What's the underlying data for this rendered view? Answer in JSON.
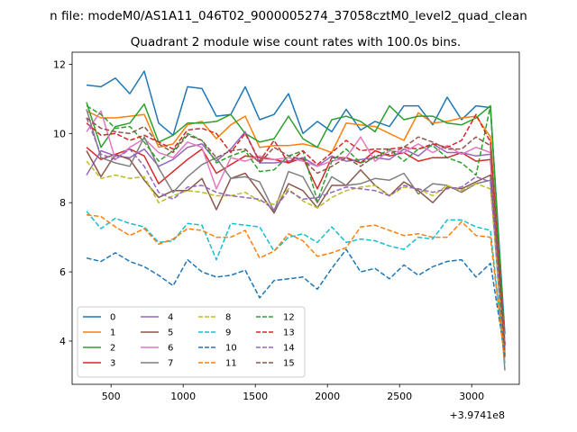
{
  "figure": {
    "suptitle": "n file: modeM0/AS1A11_046T02_9000005274_37058cztM0_level2_quad_clean"
  },
  "chart_data": {
    "type": "line",
    "title": "Quadrant 2 module wise count rates with 100.0s bins.",
    "xlabel": "",
    "ylabel": "",
    "x_offset_label": "+3.9741e8",
    "xlim": [
      230,
      3330
    ],
    "ylim": [
      2.75,
      12.35
    ],
    "xticks": [
      500,
      1000,
      1500,
      2000,
      2500,
      3000
    ],
    "yticks": [
      4,
      6,
      8,
      10,
      12
    ],
    "grid": false,
    "legend_position": "lower-left",
    "legend_columns": 4,
    "x": [
      330,
      430,
      530,
      630,
      730,
      830,
      930,
      1030,
      1130,
      1230,
      1330,
      1430,
      1530,
      1630,
      1730,
      1830,
      1930,
      2030,
      2130,
      2230,
      2330,
      2430,
      2530,
      2630,
      2730,
      2830,
      2930,
      3030,
      3130,
      3230
    ],
    "series": [
      {
        "name": "0",
        "color": "#1f77b4",
        "dash": "solid",
        "values": [
          11.4,
          11.35,
          11.6,
          11.15,
          11.8,
          10.3,
          9.95,
          11.35,
          11.3,
          10.5,
          10.55,
          11.35,
          10.4,
          10.55,
          11.15,
          10.0,
          10.35,
          10.05,
          10.7,
          10.1,
          10.35,
          10.2,
          10.8,
          10.8,
          10.25,
          11.05,
          10.4,
          10.8,
          10.75,
          4.2
        ]
      },
      {
        "name": "1",
        "color": "#ff7f0e",
        "dash": "solid",
        "values": [
          10.65,
          10.45,
          10.45,
          10.5,
          10.55,
          9.6,
          9.7,
          10.25,
          10.35,
          9.85,
          10.25,
          10.5,
          9.6,
          9.65,
          9.65,
          9.7,
          9.6,
          9.45,
          10.3,
          10.25,
          10.2,
          10.0,
          9.8,
          10.6,
          10.3,
          10.35,
          10.45,
          10.5,
          9.9,
          3.9
        ]
      },
      {
        "name": "2",
        "color": "#2ca02c",
        "dash": "solid",
        "values": [
          10.9,
          9.6,
          10.2,
          10.3,
          10.85,
          9.75,
          9.95,
          10.3,
          10.3,
          10.35,
          10.55,
          10.0,
          9.75,
          9.85,
          10.5,
          9.85,
          9.6,
          10.4,
          10.5,
          10.35,
          10.05,
          10.8,
          10.4,
          10.5,
          10.5,
          10.3,
          10.25,
          10.45,
          10.8,
          3.9
        ]
      },
      {
        "name": "3",
        "color": "#d62728",
        "dash": "solid",
        "values": [
          9.6,
          9.25,
          9.4,
          9.55,
          9.35,
          8.55,
          8.9,
          9.25,
          9.55,
          8.85,
          9.1,
          9.35,
          9.3,
          9.25,
          9.15,
          9.3,
          8.4,
          9.3,
          9.3,
          9.15,
          9.5,
          9.35,
          9.45,
          9.2,
          9.3,
          9.3,
          9.45,
          9.2,
          9.25,
          3.7
        ]
      },
      {
        "name": "4",
        "color": "#9467bd",
        "dash": "solid",
        "values": [
          8.8,
          9.5,
          9.35,
          9.3,
          9.55,
          9.05,
          9.25,
          9.6,
          9.7,
          9.2,
          9.55,
          10.05,
          9.15,
          9.15,
          9.2,
          9.3,
          9.05,
          9.35,
          9.2,
          9.25,
          9.3,
          9.25,
          9.55,
          9.35,
          9.7,
          9.45,
          9.45,
          9.35,
          9.4,
          3.9
        ]
      },
      {
        "name": "5",
        "color": "#8c564b",
        "dash": "solid",
        "values": [
          9.5,
          8.75,
          9.4,
          9.25,
          8.65,
          8.15,
          8.35,
          8.35,
          8.7,
          7.8,
          8.7,
          8.85,
          8.3,
          7.7,
          8.55,
          8.35,
          7.85,
          8.5,
          8.5,
          8.95,
          8.5,
          8.2,
          8.6,
          8.35,
          8.0,
          8.45,
          8.4,
          8.6,
          8.8,
          3.55
        ]
      },
      {
        "name": "6",
        "color": "#e377c2",
        "dash": "solid",
        "values": [
          10.05,
          10.65,
          9.25,
          9.6,
          9.85,
          9.45,
          9.3,
          9.75,
          9.6,
          8.4,
          9.3,
          9.2,
          9.35,
          9.25,
          9.3,
          9.2,
          9.05,
          9.2,
          9.3,
          9.9,
          9.2,
          9.5,
          9.45,
          9.7,
          9.45,
          9.65,
          9.4,
          9.6,
          9.45,
          3.95
        ]
      },
      {
        "name": "7",
        "color": "#7f7f7f",
        "dash": "solid",
        "values": [
          10.7,
          9.3,
          9.15,
          9.05,
          9.9,
          9.0,
          8.3,
          8.75,
          9.1,
          9.3,
          8.7,
          8.75,
          8.6,
          7.75,
          8.9,
          8.75,
          8.0,
          8.75,
          8.5,
          8.55,
          8.7,
          8.65,
          8.85,
          8.25,
          8.55,
          8.5,
          8.3,
          8.55,
          8.65,
          3.15
        ]
      },
      {
        "name": "8",
        "color": "#bcbd22",
        "dash": "dashed",
        "values": [
          9.2,
          8.7,
          8.8,
          8.7,
          8.75,
          8.0,
          8.2,
          8.35,
          8.3,
          8.2,
          8.2,
          8.3,
          8.05,
          7.95,
          8.4,
          8.05,
          7.85,
          8.15,
          8.35,
          8.45,
          8.5,
          8.2,
          8.45,
          8.4,
          8.2,
          8.5,
          8.35,
          8.55,
          8.4,
          3.65
        ]
      },
      {
        "name": "9",
        "color": "#17becf",
        "dash": "dashed",
        "values": [
          7.75,
          7.25,
          7.55,
          7.4,
          7.3,
          6.85,
          6.9,
          7.4,
          7.35,
          6.35,
          7.4,
          7.35,
          7.3,
          6.6,
          7.0,
          7.1,
          6.85,
          7.3,
          6.85,
          6.95,
          6.9,
          6.75,
          6.65,
          7.0,
          6.95,
          7.5,
          7.5,
          7.3,
          7.2,
          3.35
        ]
      },
      {
        "name": "10",
        "color": "#1f77b4",
        "dash": "dashed",
        "values": [
          6.4,
          6.3,
          6.55,
          6.3,
          6.15,
          5.9,
          5.6,
          6.35,
          6.0,
          5.85,
          5.9,
          6.05,
          5.25,
          5.75,
          5.8,
          5.85,
          5.5,
          6.1,
          6.65,
          6.0,
          6.1,
          5.8,
          6.2,
          5.9,
          6.15,
          6.3,
          6.35,
          5.85,
          6.25,
          3.6
        ]
      },
      {
        "name": "11",
        "color": "#ff7f0e",
        "dash": "dashed",
        "values": [
          7.65,
          7.6,
          7.3,
          7.05,
          7.25,
          6.8,
          6.95,
          7.25,
          7.2,
          7.0,
          7.0,
          7.2,
          6.4,
          6.6,
          7.1,
          6.9,
          6.45,
          6.55,
          6.7,
          7.3,
          7.35,
          7.2,
          7.05,
          7.1,
          7.0,
          7.0,
          7.45,
          7.05,
          7.0,
          3.4
        ]
      },
      {
        "name": "12",
        "color": "#2ca02c",
        "dash": "dashed",
        "values": [
          10.8,
          10.55,
          10.15,
          10.2,
          9.75,
          9.2,
          9.5,
          10.0,
          9.8,
          9.15,
          9.35,
          9.5,
          8.9,
          8.95,
          9.35,
          9.5,
          8.05,
          9.2,
          9.55,
          9.15,
          9.3,
          9.55,
          9.2,
          9.55,
          9.65,
          9.3,
          9.15,
          8.8,
          10.8,
          3.6
        ]
      },
      {
        "name": "13",
        "color": "#d62728",
        "dash": "dashed",
        "values": [
          10.3,
          9.95,
          10.0,
          9.8,
          9.95,
          9.75,
          9.55,
          10.1,
          10.15,
          10.0,
          9.45,
          10.0,
          9.2,
          9.8,
          9.15,
          9.5,
          9.1,
          9.45,
          9.8,
          9.5,
          9.55,
          9.55,
          9.6,
          9.55,
          9.7,
          9.6,
          9.8,
          10.55,
          9.75,
          3.85
        ]
      },
      {
        "name": "14",
        "color": "#9467bd",
        "dash": "dashed",
        "values": [
          10.45,
          9.4,
          9.25,
          9.55,
          9.05,
          8.3,
          8.1,
          8.45,
          8.5,
          8.3,
          8.2,
          8.15,
          8.1,
          7.8,
          8.35,
          8.1,
          8.15,
          8.3,
          8.45,
          8.4,
          8.35,
          8.2,
          8.5,
          8.4,
          8.3,
          8.4,
          8.45,
          8.75,
          8.6,
          3.75
        ]
      },
      {
        "name": "15",
        "color": "#8c564b",
        "dash": "dashed",
        "values": [
          10.45,
          10.15,
          10.05,
          10.0,
          10.2,
          9.7,
          9.45,
          9.95,
          9.8,
          9.3,
          9.5,
          9.55,
          9.15,
          9.6,
          9.35,
          9.25,
          8.85,
          9.05,
          9.3,
          9.05,
          9.35,
          9.4,
          9.6,
          9.9,
          9.75,
          9.55,
          9.55,
          9.9,
          9.65,
          3.5
        ]
      }
    ]
  }
}
